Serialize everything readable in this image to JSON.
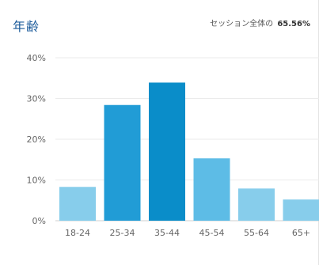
{
  "header": {
    "title": "年齢",
    "summary_label": "セッション全体の",
    "summary_value": "65.56%"
  },
  "chart_data": {
    "type": "bar",
    "categories": [
      "18-24",
      "25-34",
      "35-44",
      "45-54",
      "55-64",
      "65+"
    ],
    "values": [
      8.3,
      28.4,
      33.9,
      15.3,
      7.9,
      5.2
    ],
    "colors": [
      "#87cdeb",
      "#219cd6",
      "#0a8dc9",
      "#5dbce6",
      "#87cdeb",
      "#87cdeb"
    ],
    "yticks": [
      "0%",
      "10%",
      "20%",
      "30%",
      "40%"
    ],
    "ylim": [
      0,
      40
    ],
    "grid": true,
    "title": "年齢",
    "xlabel": "",
    "ylabel": ""
  }
}
